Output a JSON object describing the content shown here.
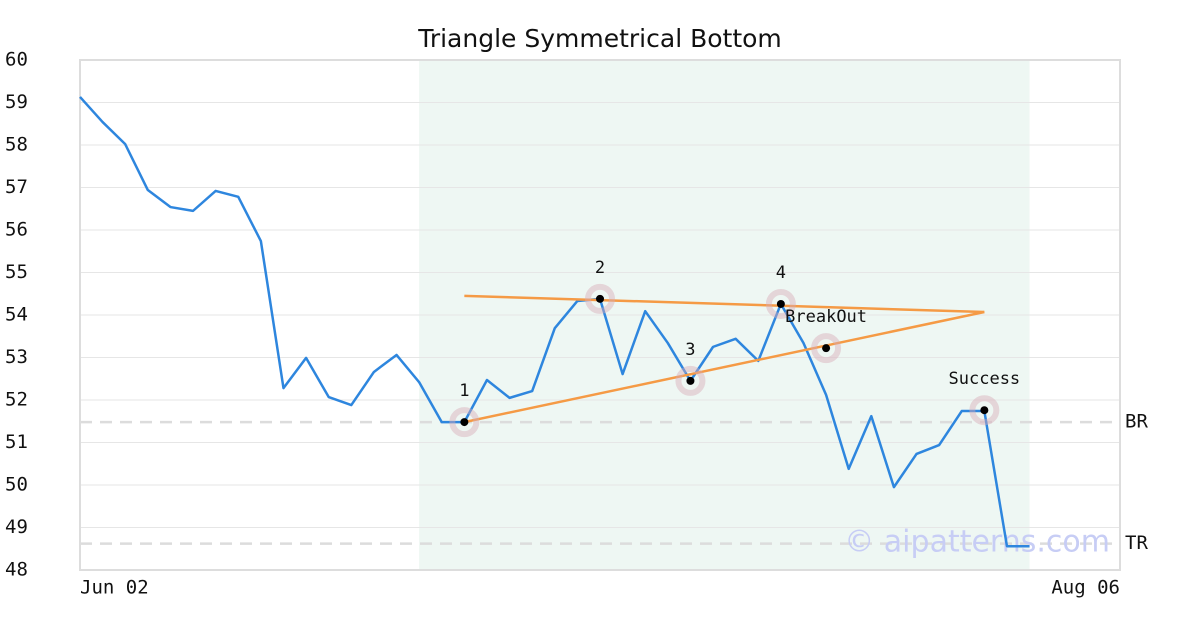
{
  "chart_data": {
    "type": "line",
    "title": "Triangle Symmetrical Bottom",
    "categories": [
      "Jun 02",
      null,
      null,
      null,
      null,
      null,
      null,
      null,
      null,
      null,
      null,
      null,
      null,
      null,
      null,
      null,
      null,
      null,
      null,
      null,
      null,
      null,
      null,
      null,
      null,
      null,
      null,
      null,
      null,
      null,
      null,
      null,
      null,
      null,
      null,
      null,
      null,
      null,
      null,
      null,
      null,
      null,
      null,
      null,
      null,
      null,
      "Aug 06"
    ],
    "values": [
      59.13,
      58.54,
      58.02,
      56.94,
      56.54,
      56.45,
      56.92,
      56.78,
      55.74,
      52.28,
      52.99,
      52.07,
      51.88,
      52.66,
      53.06,
      52.42,
      51.48,
      51.48,
      52.47,
      52.05,
      52.21,
      53.69,
      54.33,
      54.38,
      52.61,
      54.09,
      53.34,
      52.45,
      53.25,
      53.44,
      52.92,
      54.26,
      53.34,
      52.12,
      50.38,
      51.62,
      49.95,
      50.73,
      50.94,
      51.74,
      51.74,
      48.56,
      48.56,
      null,
      null,
      null,
      null
    ],
    "color": "#2e86de",
    "ylim": [
      48,
      60
    ],
    "yticks": [
      48,
      49,
      50,
      51,
      52,
      53,
      54,
      55,
      56,
      57,
      58,
      59,
      60
    ],
    "grid": true,
    "pattern_range": [
      15,
      42
    ],
    "pattern_color": "#eef7f3",
    "trendlines": [
      {
        "color": "#f59a45",
        "start": [
          17,
          54.45
        ],
        "end": [
          40,
          54.07
        ]
      },
      {
        "color": "#f59a45",
        "start": [
          17,
          51.48
        ],
        "end": [
          40,
          54.07
        ]
      }
    ],
    "points": [
      {
        "label": "1",
        "index": 17,
        "value": 51.48
      },
      {
        "label": "2",
        "index": 23,
        "value": 54.38
      },
      {
        "label": "3",
        "index": 27,
        "value": 52.45
      },
      {
        "label": "4",
        "index": 31,
        "value": 54.26
      },
      {
        "label": "BreakOut",
        "index": 33,
        "value": 53.22
      },
      {
        "label": "Success",
        "index": 40,
        "value": 51.76
      }
    ],
    "levels": [
      {
        "label": "BR",
        "value": 51.48
      },
      {
        "label": "TR",
        "value": 48.62
      }
    ],
    "watermark": "© aipatterns.com"
  }
}
